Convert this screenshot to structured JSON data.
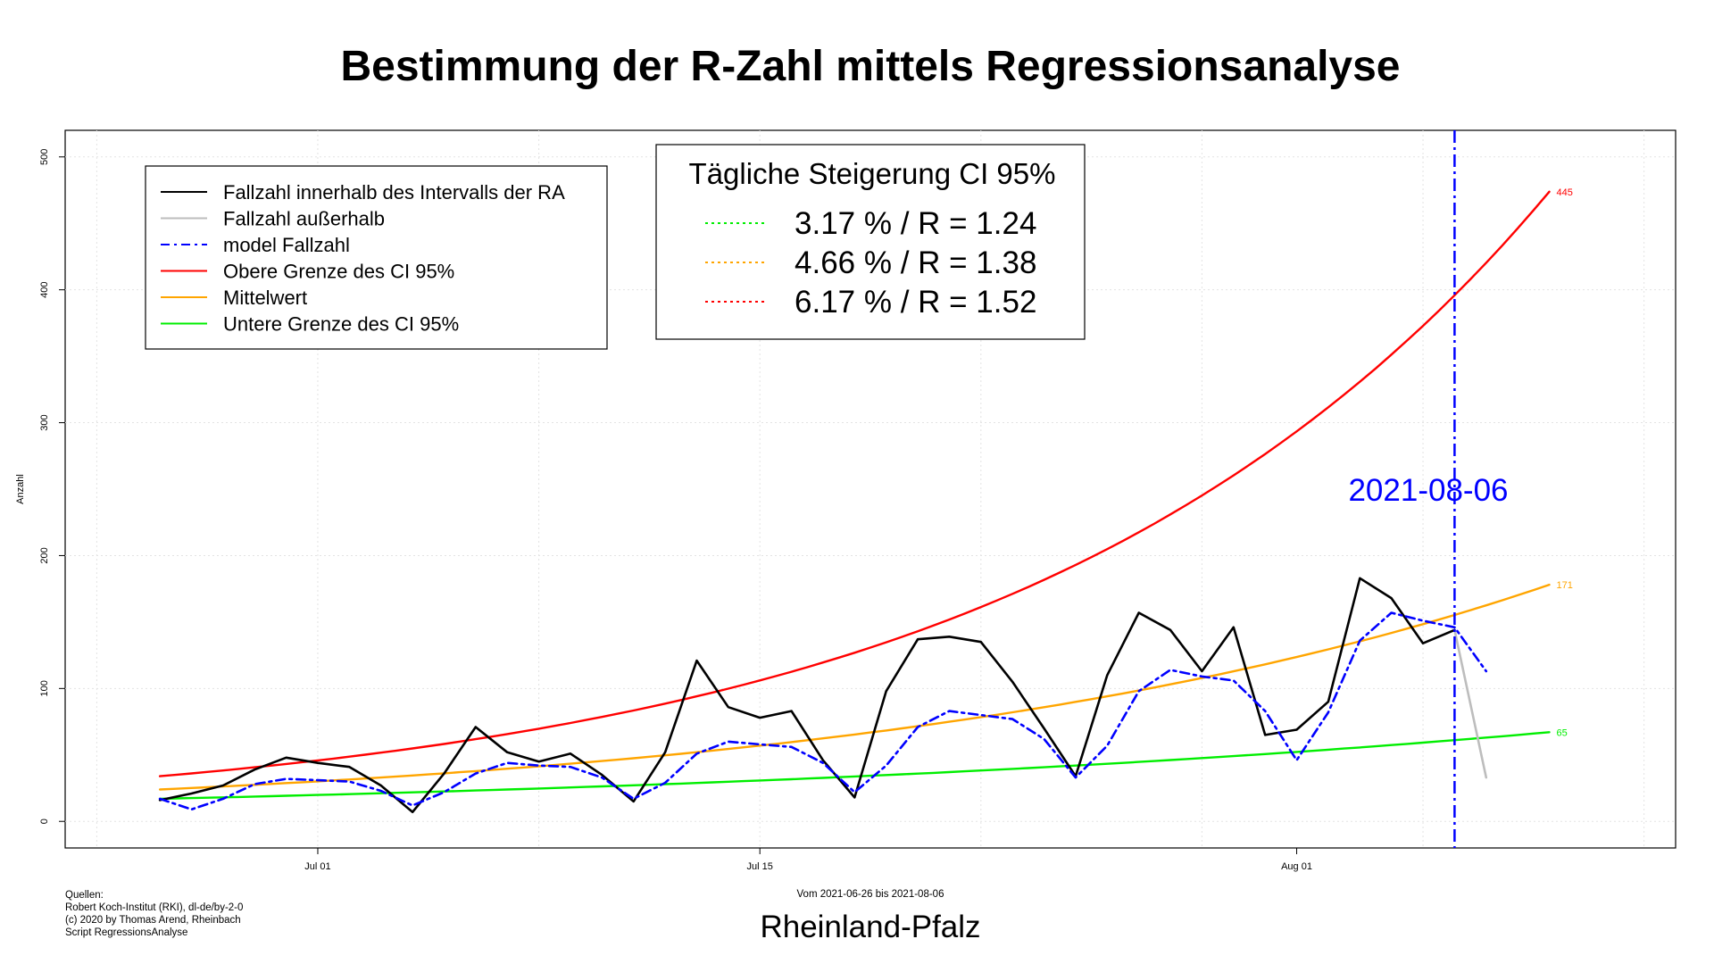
{
  "chart_data": {
    "type": "line",
    "title": "Bestimmung der R-Zahl mittels Regressionsanalyse",
    "ylabel": "Anzahl",
    "xlabel": "Vom 2021-06-26 bis 2021-08-06",
    "region": "Rheinland-Pfalz",
    "ylim": [
      -20,
      520
    ],
    "yticks": [
      0,
      100,
      200,
      300,
      400,
      500
    ],
    "xlim": [
      "2021-06-23",
      "2021-08-13"
    ],
    "xticks": [
      {
        "date": "2021-07-01",
        "label": "Jul 01"
      },
      {
        "date": "2021-07-15",
        "label": "Jul 15"
      },
      {
        "date": "2021-08-01",
        "label": "Aug 01"
      }
    ],
    "grid": true,
    "legend": {
      "position": "top-left",
      "entries": [
        {
          "label": "Fallzahl innerhalb des Intervalls der RA",
          "color": "#000000",
          "dash": "solid"
        },
        {
          "label": "Fallzahl außerhalb",
          "color": "#bdbdbd",
          "dash": "solid"
        },
        {
          "label": "model Fallzahl",
          "color": "#0000ff",
          "dash": "dashdot"
        },
        {
          "label": "Obere Grenze des CI 95%",
          "color": "#ff0000",
          "dash": "solid"
        },
        {
          "label": "Mittelwert",
          "color": "#ffa500",
          "dash": "solid"
        },
        {
          "label": "Untere Grenze des CI 95%",
          "color": "#00ee00",
          "dash": "solid"
        }
      ]
    },
    "ci_box": {
      "title": "Tägliche Steigerung CI  95%",
      "rows": [
        {
          "text": "3.17 % / R = 1.24",
          "color": "#00ee00"
        },
        {
          "text": "4.66 % / R = 1.38",
          "color": "#ffa500"
        },
        {
          "text": "6.17 % / R = 1.52",
          "color": "#ff0000"
        }
      ]
    },
    "vline": {
      "date": "2021-08-06",
      "label": "2021-08-06",
      "color": "#0000ff"
    },
    "series": [
      {
        "name": "Fallzahl innerhalb des Intervalls der RA",
        "color": "#000000",
        "x": [
          "2021-06-26",
          "2021-06-27",
          "2021-06-28",
          "2021-06-29",
          "2021-06-30",
          "2021-07-01",
          "2021-07-02",
          "2021-07-03",
          "2021-07-04",
          "2021-07-05",
          "2021-07-06",
          "2021-07-07",
          "2021-07-08",
          "2021-07-09",
          "2021-07-10",
          "2021-07-11",
          "2021-07-12",
          "2021-07-13",
          "2021-07-14",
          "2021-07-15",
          "2021-07-16",
          "2021-07-17",
          "2021-07-18",
          "2021-07-19",
          "2021-07-20",
          "2021-07-21",
          "2021-07-22",
          "2021-07-23",
          "2021-07-24",
          "2021-07-25",
          "2021-07-26",
          "2021-07-27",
          "2021-07-28",
          "2021-07-29",
          "2021-07-30",
          "2021-07-31",
          "2021-08-01",
          "2021-08-02",
          "2021-08-03",
          "2021-08-04",
          "2021-08-05",
          "2021-08-06"
        ],
        "values": [
          16,
          21,
          27,
          39,
          48,
          44,
          41,
          27,
          7,
          36,
          71,
          52,
          45,
          51,
          35,
          15,
          52,
          121,
          86,
          78,
          83,
          46,
          18,
          98,
          137,
          139,
          135,
          105,
          70,
          34,
          110,
          157,
          144,
          113,
          146,
          65,
          69,
          90,
          183,
          168,
          134,
          144
        ]
      },
      {
        "name": "Fallzahl außerhalb",
        "color": "#bdbdbd",
        "x": [
          "2021-08-06",
          "2021-08-07"
        ],
        "values": [
          144,
          33
        ]
      },
      {
        "name": "model Fallzahl",
        "color": "#0000ff",
        "x": [
          "2021-06-26",
          "2021-06-27",
          "2021-06-28",
          "2021-06-29",
          "2021-06-30",
          "2021-07-01",
          "2021-07-02",
          "2021-07-03",
          "2021-07-04",
          "2021-07-05",
          "2021-07-06",
          "2021-07-07",
          "2021-07-08",
          "2021-07-09",
          "2021-07-10",
          "2021-07-11",
          "2021-07-12",
          "2021-07-13",
          "2021-07-14",
          "2021-07-15",
          "2021-07-16",
          "2021-07-17",
          "2021-07-18",
          "2021-07-19",
          "2021-07-20",
          "2021-07-21",
          "2021-07-22",
          "2021-07-23",
          "2021-07-24",
          "2021-07-25",
          "2021-07-26",
          "2021-07-27",
          "2021-07-28",
          "2021-07-29",
          "2021-07-30",
          "2021-07-31",
          "2021-08-01",
          "2021-08-02",
          "2021-08-03",
          "2021-08-04",
          "2021-08-05",
          "2021-08-06",
          "2021-08-07"
        ],
        "values": [
          17,
          9,
          17,
          28,
          32,
          31,
          30,
          23,
          12,
          22,
          36,
          44,
          42,
          41,
          33,
          17,
          29,
          51,
          60,
          58,
          56,
          44,
          22,
          42,
          71,
          83,
          80,
          77,
          62,
          33,
          57,
          98,
          114,
          109,
          106,
          83,
          46,
          82,
          136,
          157,
          151,
          146,
          113
        ]
      },
      {
        "name": "Obere Grenze des CI 95%",
        "color": "#ff0000",
        "x_start": "2021-06-26",
        "x_end": "2021-08-09",
        "start": 34,
        "daily_rate": 0.0617,
        "end_label": "445"
      },
      {
        "name": "Mittelwert",
        "color": "#ffa500",
        "x_start": "2021-06-26",
        "x_end": "2021-08-09",
        "start": 24,
        "daily_rate": 0.0466,
        "end_label": "171"
      },
      {
        "name": "Untere Grenze des CI 95%",
        "color": "#00ee00",
        "x_start": "2021-06-26",
        "x_end": "2021-08-09",
        "start": 17,
        "daily_rate": 0.0317,
        "end_label": "65"
      }
    ]
  },
  "sources": {
    "lines": [
      "Quellen:",
      "Robert Koch-Institut (RKI), dl-de/by-2-0",
      "(c) 2020 by Thomas Arend, Rheinbach",
      "Script RegressionsAnalyse"
    ]
  }
}
